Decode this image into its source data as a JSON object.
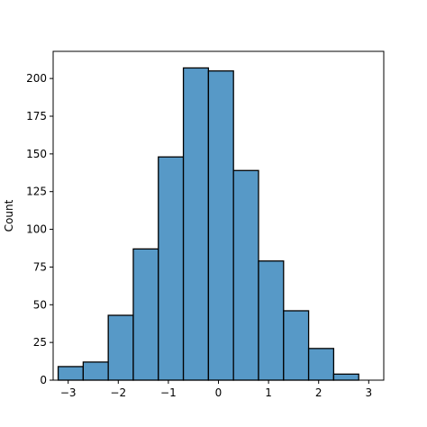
{
  "chart_data": {
    "type": "bar",
    "title": "",
    "xlabel": "",
    "ylabel": "Count",
    "bin_edges": [
      -3.2,
      -2.7,
      -2.2,
      -1.7,
      -1.2,
      -0.7,
      -0.2,
      0.3,
      0.8,
      1.3,
      1.8,
      2.3,
      2.8
    ],
    "counts": [
      9,
      12,
      43,
      87,
      148,
      207,
      205,
      139,
      79,
      46,
      21,
      4
    ],
    "xlim": [
      -3.3,
      3.3
    ],
    "ylim": [
      0,
      218
    ],
    "xticks": [
      -3,
      -2,
      -1,
      0,
      1,
      2,
      3
    ],
    "xtick_labels": [
      "−3",
      "−2",
      "−1",
      "0",
      "1",
      "2",
      "3"
    ],
    "yticks": [
      0,
      25,
      50,
      75,
      100,
      125,
      150,
      175,
      200
    ],
    "ytick_labels": [
      "0",
      "25",
      "50",
      "75",
      "100",
      "125",
      "150",
      "175",
      "200"
    ],
    "grid": false,
    "bar_color": "#5799c7",
    "edge_color": "#000000"
  }
}
